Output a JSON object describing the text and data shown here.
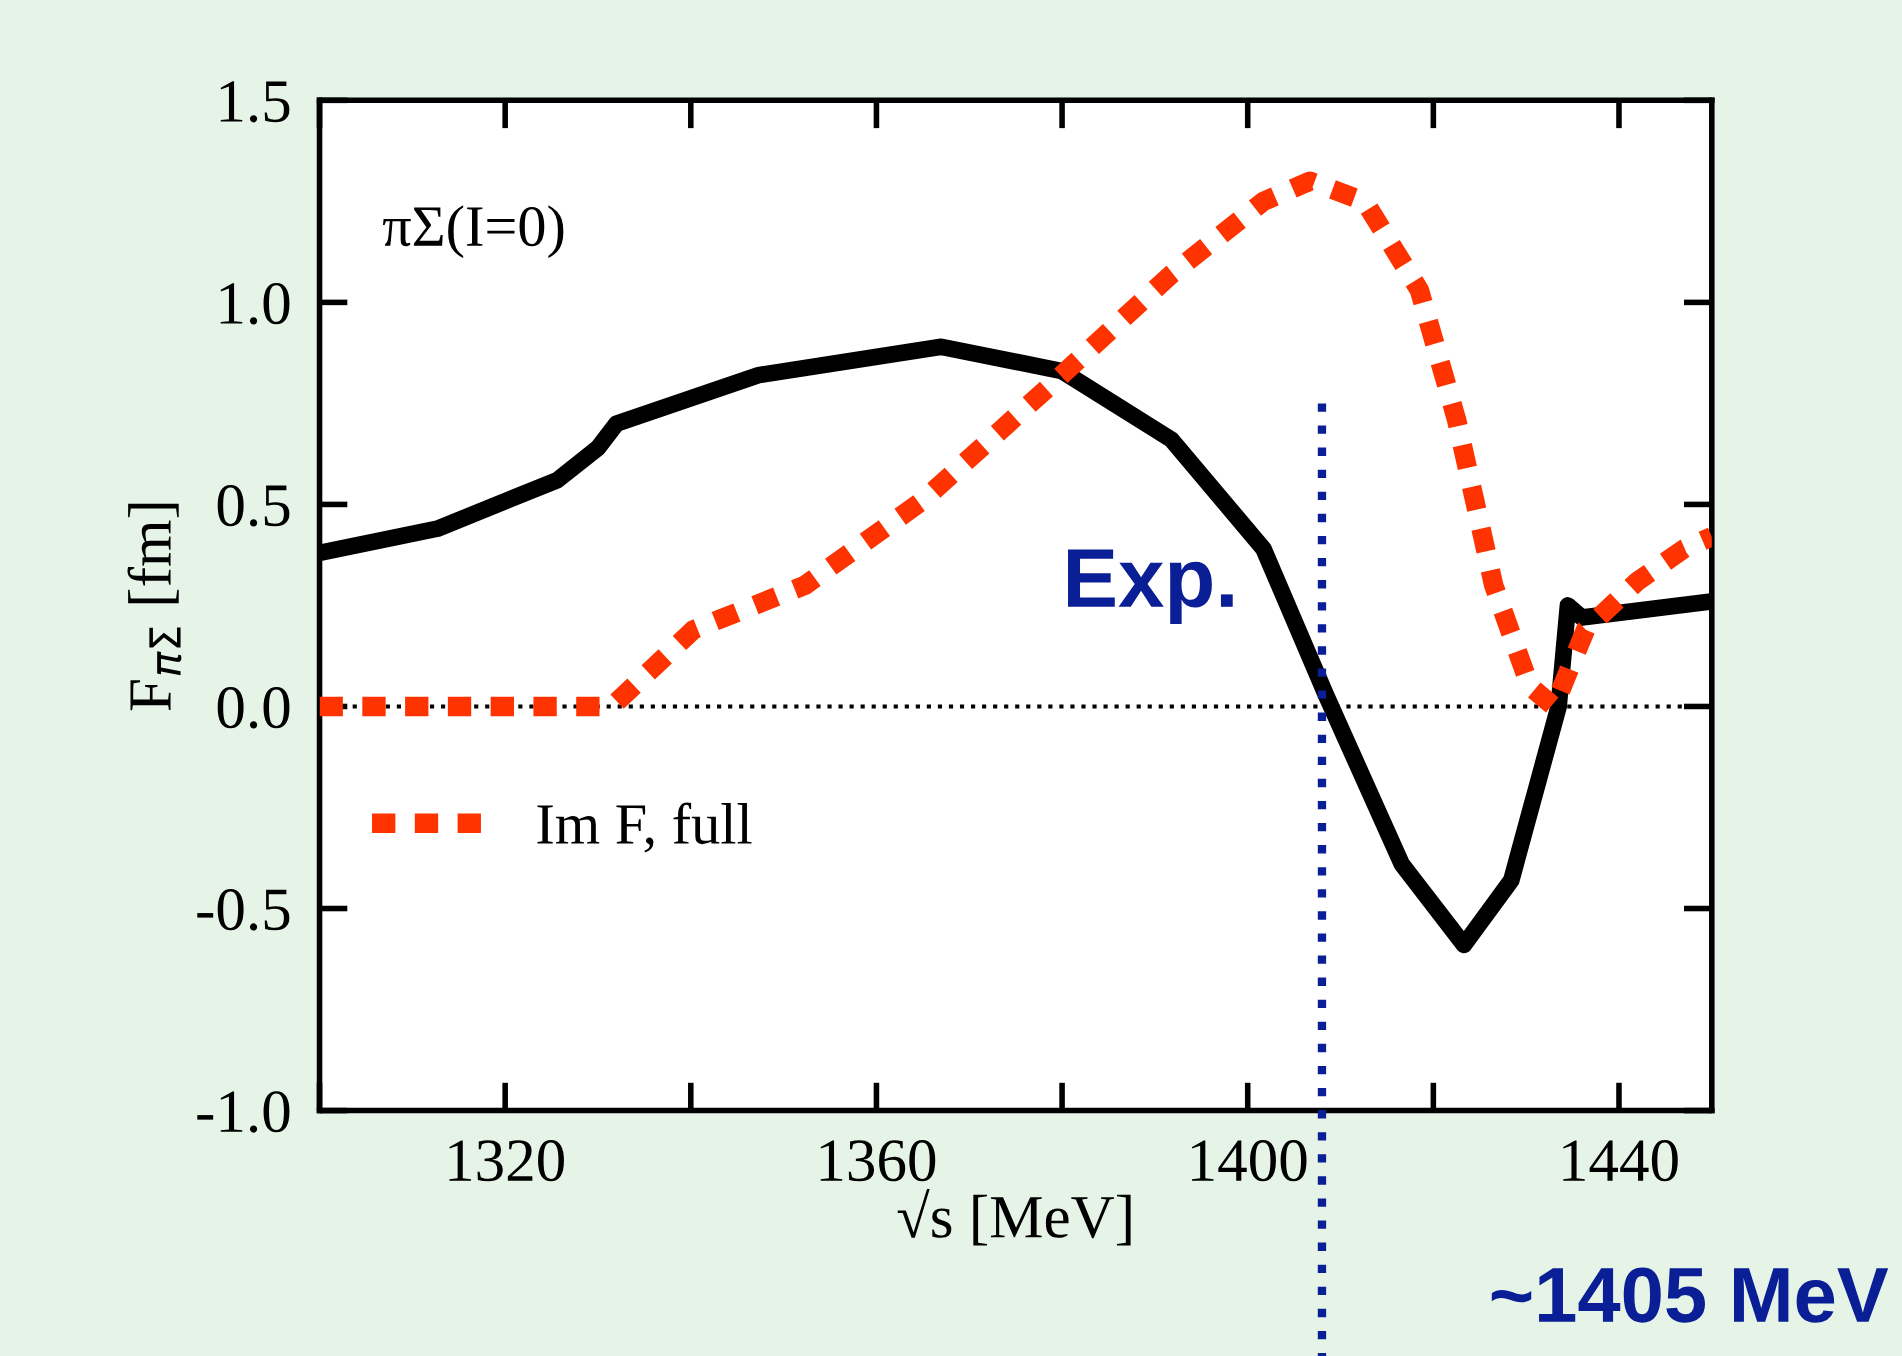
{
  "chart_data": {
    "type": "line",
    "xlabel": "√s [MeV]",
    "ylabel": "F$_{πΣ}$ [fm]",
    "xlim": [
      1300,
      1450
    ],
    "ylim": [
      -1.0,
      1.5
    ],
    "xticks": [
      {
        "value": 1300,
        "label": null
      },
      1320,
      {
        "value": 1340,
        "label": null
      },
      1360,
      {
        "value": 1380,
        "label": null
      },
      1400,
      {
        "value": 1420,
        "label": null
      },
      1440
    ],
    "yticks": [
      {
        "value": -1.0,
        "label": "-1.0"
      },
      {
        "value": -0.5,
        "label": "-0.5"
      },
      {
        "value": 0.0,
        "label": "0.0"
      },
      {
        "value": 0.5,
        "label": "0.5"
      },
      {
        "value": 1.0,
        "label": "1.0"
      },
      {
        "value": 1.5,
        "label": "1.5"
      }
    ],
    "grid": false,
    "legend": "bottom left",
    "marker": "none",
    "series": [
      {
        "color": "#000000",
        "line_style": "solid",
        "x": [
          1300,
          1312.7,
          1325.6,
          1330,
          1332,
          1347.3,
          1367,
          1380,
          1391.8,
          1401.7,
          1408.4,
          1416.6,
          1423.3,
          1428.4,
          1433.5,
          1434.5,
          1436,
          1450
        ],
        "values": [
          0.38,
          0.44,
          0.56,
          0.64,
          0.7,
          0.82,
          0.89,
          0.83,
          0.66,
          0.39,
          0.03,
          -0.39,
          -0.59,
          -0.43,
          0.0,
          0.25,
          0.22,
          0.26
        ]
      },
      {
        "name": "Im F, full",
        "color": "#ff3300",
        "line_style": "dashed",
        "x": [
          1300,
          1331.5,
          1340.3,
          1352.3,
          1365,
          1379,
          1391.8,
          1401.7,
          1406.7,
          1412.6,
          1418.5,
          1422.5,
          1426.5,
          1430.4,
          1433,
          1436.4,
          1442,
          1447,
          1450
        ],
        "values": [
          0.0,
          0.0,
          0.19,
          0.3,
          0.51,
          0.8,
          1.07,
          1.25,
          1.3,
          1.25,
          1.03,
          0.71,
          0.3,
          0.05,
          0.0,
          0.19,
          0.31,
          0.39,
          0.42
        ]
      }
    ],
    "ref_lines": [
      {
        "axis": "y",
        "value": 0,
        "color": "#000000",
        "line_style": "dotted"
      },
      {
        "axis": "x",
        "value": 1408,
        "label": "Exp.",
        "color": "#0a1e96",
        "line_style": "dotted"
      }
    ],
    "annotations": [
      "πΣ(I=0)",
      "~1405 MeV"
    ]
  }
}
